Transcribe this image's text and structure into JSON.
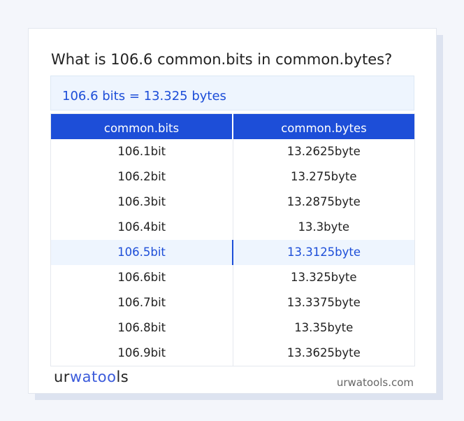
{
  "title": "What is 106.6 common.bits in common.bytes?",
  "result": "106.6 bits = 13.325 bytes",
  "table": {
    "headers": [
      "common.bits",
      "common.bytes"
    ],
    "rows": [
      [
        "106.1bit",
        "13.2625byte"
      ],
      [
        "106.2bit",
        "13.275byte"
      ],
      [
        "106.3bit",
        "13.2875byte"
      ],
      [
        "106.4bit",
        "13.3byte"
      ],
      [
        "106.5bit",
        "13.3125byte"
      ],
      [
        "106.6bit",
        "13.325byte"
      ],
      [
        "106.7bit",
        "13.3375byte"
      ],
      [
        "106.8bit",
        "13.35byte"
      ],
      [
        "106.9bit",
        "13.3625byte"
      ]
    ],
    "highlighted_row": 4
  },
  "logo": {
    "part1": "ur",
    "part2": "wa",
    "part3": "too",
    "part4": "ls"
  },
  "site": "urwatools.com",
  "colors": {
    "accent": "#1d4ed8",
    "highlight_bg": "#eef5fe"
  }
}
